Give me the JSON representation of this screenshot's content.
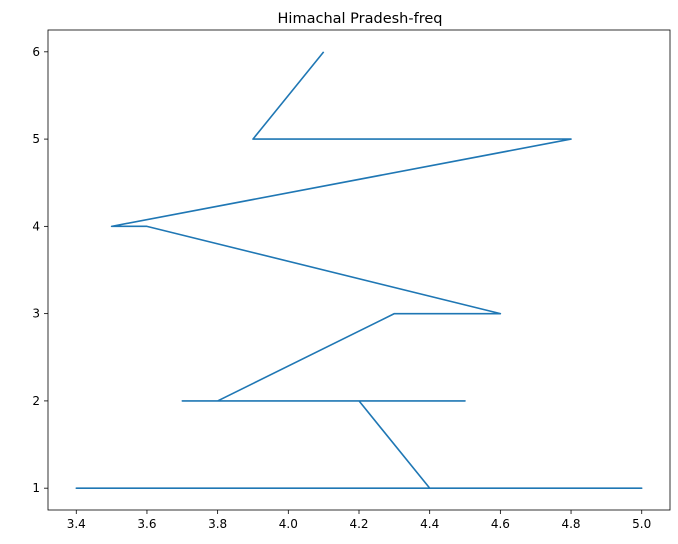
{
  "chart_data": {
    "type": "line",
    "title": "Himachal Pradesh-freq",
    "xlabel": "",
    "ylabel": "",
    "xlim": [
      3.32,
      5.08
    ],
    "ylim": [
      0.75,
      6.25
    ],
    "x_ticks": [
      3.4,
      3.6,
      3.8,
      4.0,
      4.2,
      4.4,
      4.6,
      4.8,
      5.0
    ],
    "x_tick_labels": [
      "3.4",
      "3.6",
      "3.8",
      "4.0",
      "4.2",
      "4.4",
      "4.6",
      "4.8",
      "5.0"
    ],
    "y_ticks": [
      1,
      2,
      3,
      4,
      5,
      6
    ],
    "y_tick_labels": [
      "1",
      "2",
      "3",
      "4",
      "5",
      "6"
    ],
    "grid": false,
    "series": [
      {
        "color": "#1f77b4",
        "x": [
          4.1,
          3.9,
          4.8,
          3.5,
          3.6,
          4.6,
          4.3,
          3.8,
          4.5,
          3.7,
          4.2,
          4.4,
          5.0,
          3.4,
          4.9,
          3.4
        ],
        "y": [
          6,
          5,
          5,
          4,
          4,
          3,
          3,
          2,
          2,
          2,
          2,
          1,
          1,
          1,
          1,
          1
        ]
      }
    ]
  }
}
